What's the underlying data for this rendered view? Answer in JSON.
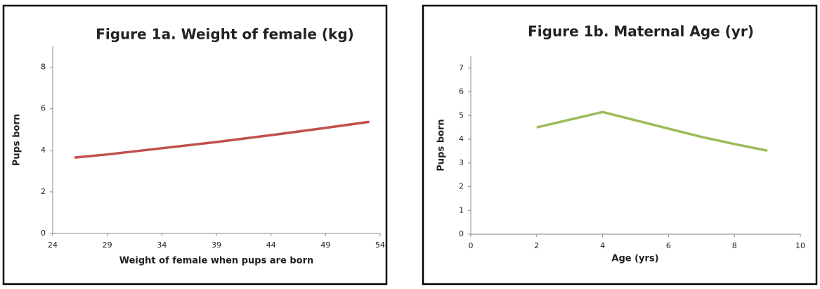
{
  "chart_data": [
    {
      "type": "line",
      "title": "Figure 1a. Weight of female (kg)",
      "x_label": "Weight  of female when pups are born",
      "y_label": "Pups born",
      "x": [
        26,
        29,
        34,
        39,
        44,
        49,
        53
      ],
      "series": [
        {
          "color": "#c0504d",
          "values": [
            3.65,
            3.8,
            4.1,
            4.4,
            4.73,
            5.08,
            5.37
          ]
        }
      ],
      "xlim": [
        24,
        54
      ],
      "xticks": [
        24,
        29,
        34,
        39,
        44,
        49,
        54
      ],
      "ylim": [
        0,
        9
      ],
      "yticks": [
        0,
        2,
        4,
        6,
        8
      ],
      "grid": false
    },
    {
      "type": "line",
      "title": "Figure 1b. Maternal Age (yr)",
      "x_label": "Age (yrs)",
      "y_label": "Pups born",
      "x": [
        2,
        4,
        6,
        7,
        8,
        9
      ],
      "series": [
        {
          "color": "#9bbb59",
          "values": [
            4.5,
            5.15,
            4.45,
            4.1,
            3.8,
            3.52
          ]
        }
      ],
      "xlim": [
        0,
        10
      ],
      "xticks": [
        0,
        2,
        4,
        6,
        8,
        10
      ],
      "ylim": [
        0,
        7.5
      ],
      "yticks": [
        0,
        1,
        2,
        3,
        4,
        5,
        6,
        7
      ],
      "grid": false
    }
  ]
}
